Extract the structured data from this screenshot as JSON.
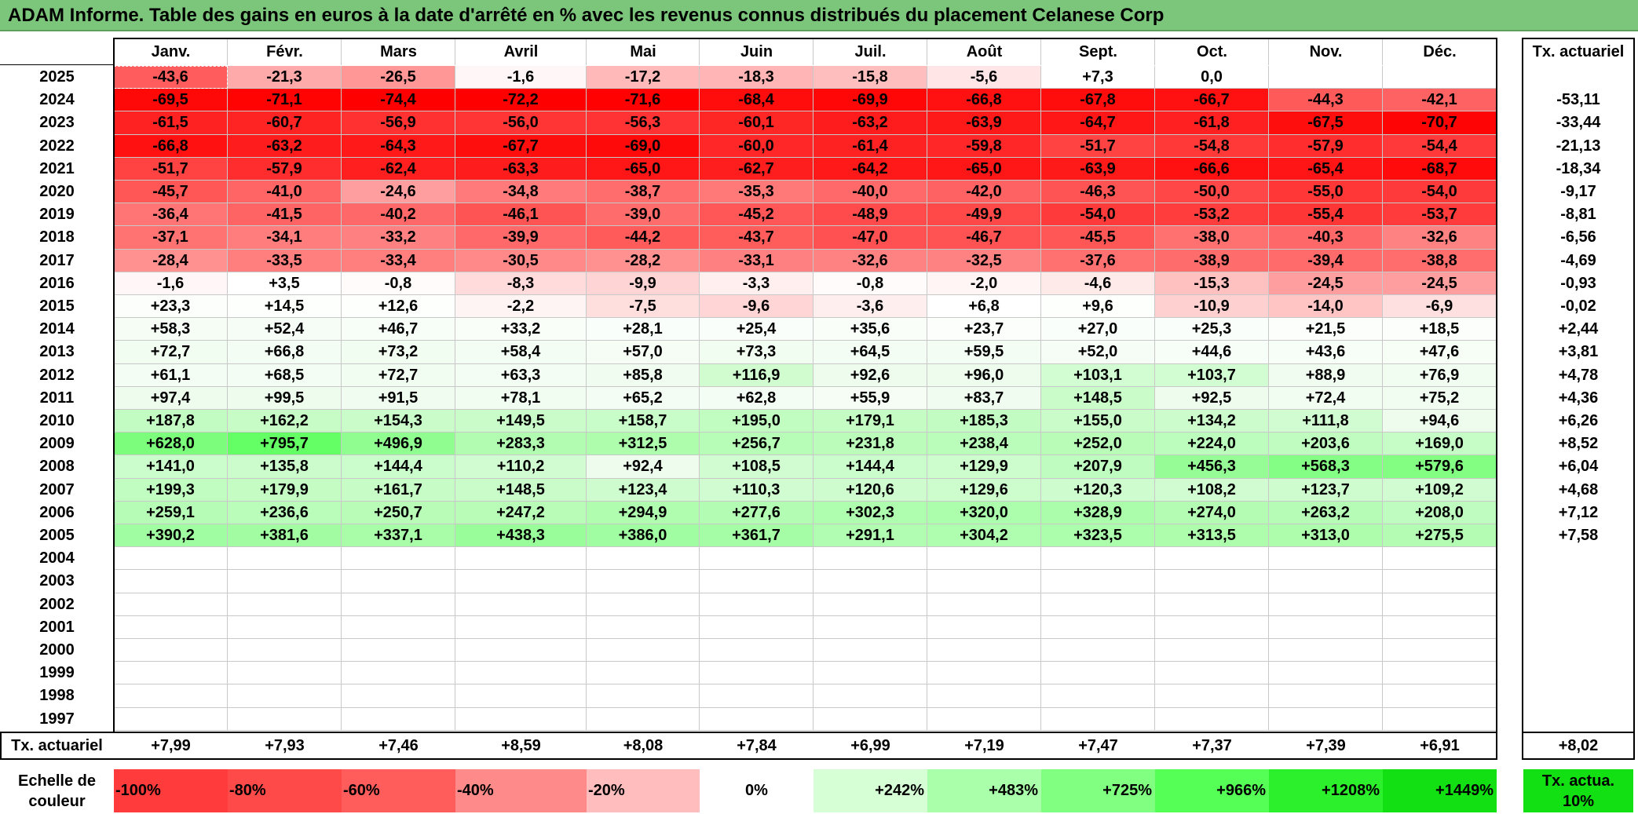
{
  "title": "ADAM Informe. Table des gains en euros à la date d'arrêté en % avec les revenus connus distribués du placement Celanese Corp",
  "months": [
    "Janv.",
    "Févr.",
    "Mars",
    "Avril",
    "Mai",
    "Juin",
    "Juil.",
    "Août",
    "Sept.",
    "Oct.",
    "Nov.",
    "Déc."
  ],
  "rate_header": "Tx. actuariel",
  "rows": [
    {
      "year": "2025",
      "values": [
        "-43,6",
        "-21,3",
        "-26,5",
        "-1,6",
        "-17,2",
        "-18,3",
        "-15,8",
        "-5,6",
        "+7,3",
        "0,0",
        "",
        ""
      ],
      "rate": ""
    },
    {
      "year": "2024",
      "values": [
        "-69,5",
        "-71,1",
        "-74,4",
        "-72,2",
        "-71,6",
        "-68,4",
        "-69,9",
        "-66,8",
        "-67,8",
        "-66,7",
        "-44,3",
        "-42,1"
      ],
      "rate": "-53,11"
    },
    {
      "year": "2023",
      "values": [
        "-61,5",
        "-60,7",
        "-56,9",
        "-56,0",
        "-56,3",
        "-60,1",
        "-63,2",
        "-63,9",
        "-64,7",
        "-61,8",
        "-67,5",
        "-70,7"
      ],
      "rate": "-33,44"
    },
    {
      "year": "2022",
      "values": [
        "-66,8",
        "-63,2",
        "-64,3",
        "-67,7",
        "-69,0",
        "-60,0",
        "-61,4",
        "-59,8",
        "-51,7",
        "-54,8",
        "-57,9",
        "-54,4"
      ],
      "rate": "-21,13"
    },
    {
      "year": "2021",
      "values": [
        "-51,7",
        "-57,9",
        "-62,4",
        "-63,3",
        "-65,0",
        "-62,7",
        "-64,2",
        "-65,0",
        "-63,9",
        "-66,6",
        "-65,4",
        "-68,7"
      ],
      "rate": "-18,34"
    },
    {
      "year": "2020",
      "values": [
        "-45,7",
        "-41,0",
        "-24,6",
        "-34,8",
        "-38,7",
        "-35,3",
        "-40,0",
        "-42,0",
        "-46,3",
        "-50,0",
        "-55,0",
        "-54,0"
      ],
      "rate": "-9,17"
    },
    {
      "year": "2019",
      "values": [
        "-36,4",
        "-41,5",
        "-40,2",
        "-46,1",
        "-39,0",
        "-45,2",
        "-48,9",
        "-49,9",
        "-54,0",
        "-53,2",
        "-55,4",
        "-53,7"
      ],
      "rate": "-8,81"
    },
    {
      "year": "2018",
      "values": [
        "-37,1",
        "-34,1",
        "-33,2",
        "-39,9",
        "-44,2",
        "-43,7",
        "-47,0",
        "-46,7",
        "-45,5",
        "-38,0",
        "-40,3",
        "-32,6"
      ],
      "rate": "-6,56"
    },
    {
      "year": "2017",
      "values": [
        "-28,4",
        "-33,5",
        "-33,4",
        "-30,5",
        "-28,2",
        "-33,1",
        "-32,6",
        "-32,5",
        "-37,6",
        "-38,9",
        "-39,4",
        "-38,8"
      ],
      "rate": "-4,69"
    },
    {
      "year": "2016",
      "values": [
        "-1,6",
        "+3,5",
        "-0,8",
        "-8,3",
        "-9,9",
        "-3,3",
        "-0,8",
        "-2,0",
        "-4,6",
        "-15,3",
        "-24,5",
        "-24,5"
      ],
      "rate": "-0,93"
    },
    {
      "year": "2015",
      "values": [
        "+23,3",
        "+14,5",
        "+12,6",
        "-2,2",
        "-7,5",
        "-9,6",
        "-3,6",
        "+6,8",
        "+9,6",
        "-10,9",
        "-14,0",
        "-6,9"
      ],
      "rate": "-0,02"
    },
    {
      "year": "2014",
      "values": [
        "+58,3",
        "+52,4",
        "+46,7",
        "+33,2",
        "+28,1",
        "+25,4",
        "+35,6",
        "+23,7",
        "+27,0",
        "+25,3",
        "+21,5",
        "+18,5"
      ],
      "rate": "+2,44"
    },
    {
      "year": "2013",
      "values": [
        "+72,7",
        "+66,8",
        "+73,2",
        "+58,4",
        "+57,0",
        "+73,3",
        "+64,5",
        "+59,5",
        "+52,0",
        "+44,6",
        "+43,6",
        "+47,6"
      ],
      "rate": "+3,81"
    },
    {
      "year": "2012",
      "values": [
        "+61,1",
        "+68,5",
        "+72,7",
        "+63,3",
        "+85,8",
        "+116,9",
        "+92,6",
        "+96,0",
        "+103,1",
        "+103,7",
        "+88,9",
        "+76,9"
      ],
      "rate": "+4,78"
    },
    {
      "year": "2011",
      "values": [
        "+97,4",
        "+99,5",
        "+91,5",
        "+78,1",
        "+65,2",
        "+62,8",
        "+55,9",
        "+83,7",
        "+148,5",
        "+92,5",
        "+72,4",
        "+75,2"
      ],
      "rate": "+4,36"
    },
    {
      "year": "2010",
      "values": [
        "+187,8",
        "+162,2",
        "+154,3",
        "+149,5",
        "+158,7",
        "+195,0",
        "+179,1",
        "+185,3",
        "+155,0",
        "+134,2",
        "+111,8",
        "+94,6"
      ],
      "rate": "+6,26"
    },
    {
      "year": "2009",
      "values": [
        "+628,0",
        "+795,7",
        "+496,9",
        "+283,3",
        "+312,5",
        "+256,7",
        "+231,8",
        "+238,4",
        "+252,0",
        "+224,0",
        "+203,6",
        "+169,0"
      ],
      "rate": "+8,52"
    },
    {
      "year": "2008",
      "values": [
        "+141,0",
        "+135,8",
        "+144,4",
        "+110,2",
        "+92,4",
        "+108,5",
        "+144,4",
        "+129,9",
        "+207,9",
        "+456,3",
        "+568,3",
        "+579,6"
      ],
      "rate": "+6,04"
    },
    {
      "year": "2007",
      "values": [
        "+199,3",
        "+179,9",
        "+161,7",
        "+148,5",
        "+123,4",
        "+110,3",
        "+120,6",
        "+129,6",
        "+120,3",
        "+108,2",
        "+123,7",
        "+109,2"
      ],
      "rate": "+4,68"
    },
    {
      "year": "2006",
      "values": [
        "+259,1",
        "+236,6",
        "+250,7",
        "+247,2",
        "+294,9",
        "+277,6",
        "+302,3",
        "+320,0",
        "+328,9",
        "+274,0",
        "+263,2",
        "+208,0"
      ],
      "rate": "+7,12"
    },
    {
      "year": "2005",
      "values": [
        "+390,2",
        "+381,6",
        "+337,1",
        "+438,3",
        "+386,0",
        "+361,7",
        "+291,1",
        "+304,2",
        "+323,5",
        "+313,5",
        "+313,0",
        "+275,5"
      ],
      "rate": "+7,58"
    },
    {
      "year": "2004",
      "values": [
        "",
        "",
        "",
        "",
        "",
        "",
        "",
        "",
        "",
        "",
        "",
        ""
      ],
      "rate": ""
    },
    {
      "year": "2003",
      "values": [
        "",
        "",
        "",
        "",
        "",
        "",
        "",
        "",
        "",
        "",
        "",
        ""
      ],
      "rate": ""
    },
    {
      "year": "2002",
      "values": [
        "",
        "",
        "",
        "",
        "",
        "",
        "",
        "",
        "",
        "",
        "",
        ""
      ],
      "rate": ""
    },
    {
      "year": "2001",
      "values": [
        "",
        "",
        "",
        "",
        "",
        "",
        "",
        "",
        "",
        "",
        "",
        ""
      ],
      "rate": ""
    },
    {
      "year": "2000",
      "values": [
        "",
        "",
        "",
        "",
        "",
        "",
        "",
        "",
        "",
        "",
        "",
        ""
      ],
      "rate": ""
    },
    {
      "year": "1999",
      "values": [
        "",
        "",
        "",
        "",
        "",
        "",
        "",
        "",
        "",
        "",
        "",
        ""
      ],
      "rate": ""
    },
    {
      "year": "1998",
      "values": [
        "",
        "",
        "",
        "",
        "",
        "",
        "",
        "",
        "",
        "",
        "",
        ""
      ],
      "rate": ""
    },
    {
      "year": "1997",
      "values": [
        "",
        "",
        "",
        "",
        "",
        "",
        "",
        "",
        "",
        "",
        "",
        ""
      ],
      "rate": ""
    }
  ],
  "footer": {
    "label": "Tx. actuariel",
    "values": [
      "+7,99",
      "+7,93",
      "+7,46",
      "+8,59",
      "+8,08",
      "+7,84",
      "+6,99",
      "+7,19",
      "+7,47",
      "+7,37",
      "+7,39",
      "+6,91"
    ],
    "rate": "+8,02"
  },
  "scale": {
    "label": "Echelle de couleur",
    "items": [
      {
        "label": "-100%",
        "color": "#ff3b3b"
      },
      {
        "label": "-80%",
        "color": "#ff4a4a"
      },
      {
        "label": "-60%",
        "color": "#ff5c5c"
      },
      {
        "label": "-40%",
        "color": "#ff8a8a"
      },
      {
        "label": "-20%",
        "color": "#ffbdbd"
      },
      {
        "label": "0%",
        "color": "#ffffff"
      },
      {
        "label": "+242%",
        "color": "#d6ffd6"
      },
      {
        "label": "+483%",
        "color": "#aaffaa"
      },
      {
        "label": "+725%",
        "color": "#80ff80"
      },
      {
        "label": "+966%",
        "color": "#55ff55"
      },
      {
        "label": "+1208%",
        "color": "#2cf02c"
      },
      {
        "label": "+1449%",
        "color": "#12e012"
      }
    ],
    "rate_label": "Tx. actua. 10%",
    "rate_color": "#12e012"
  },
  "colors": {
    "title_bar": "#7cc67c",
    "negative_full": "#ff0000",
    "positive_full": "#00ff00"
  }
}
